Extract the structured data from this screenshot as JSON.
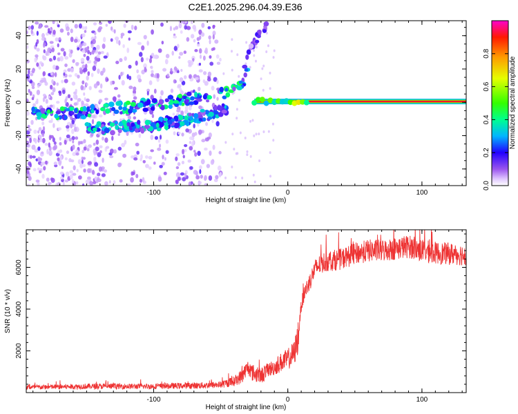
{
  "title": "C2E1.2025.296.04.39.E36",
  "chart_data": [
    {
      "type": "heatmap",
      "xlabel": "Height of straight line (km)",
      "ylabel": "Frequency (Hz)",
      "xlim": [
        -195,
        133
      ],
      "ylim": [
        -50,
        49
      ],
      "x_ticks": [
        -100,
        0,
        100
      ],
      "y_ticks": [
        -40,
        -20,
        0,
        20,
        40
      ],
      "colorbar": {
        "label": "Normalized spectral amplitude",
        "range": [
          0,
          1
        ],
        "ticks": [
          0.0,
          0.2,
          0.4,
          0.6,
          0.8
        ]
      },
      "ridges": [
        {
          "name": "main-doppler-track",
          "x": [
            -190,
            -150,
            -120,
            -90,
            -60,
            -45,
            -38,
            -33,
            -30
          ],
          "y": [
            -7,
            -6,
            -3,
            0,
            4,
            6,
            8,
            13,
            20
          ],
          "amplitude": 0.35
        },
        {
          "name": "lower-track",
          "x": [
            -150,
            -125,
            -100,
            -75,
            -58,
            -45
          ],
          "y": [
            -16,
            -15,
            -14,
            -10,
            -7,
            -3
          ],
          "amplitude": 0.3
        },
        {
          "name": "upper-branch",
          "x": [
            -33,
            -25,
            -15
          ],
          "y": [
            22,
            35,
            48
          ],
          "amplitude": 0.15
        },
        {
          "name": "carrier-line",
          "x": [
            -25,
            133
          ],
          "y": [
            0.5,
            0
          ],
          "amplitude": 0.95
        }
      ]
    },
    {
      "type": "line",
      "xlabel": "Height of straight line (km)",
      "ylabel": "SNR (10 * v/v)",
      "xlim": [
        -195,
        133
      ],
      "ylim": [
        0,
        7800
      ],
      "x_ticks": [
        -100,
        0,
        100
      ],
      "y_ticks": [
        2000,
        4000,
        6000
      ],
      "series": [
        {
          "name": "SNR",
          "color": "#ee3333",
          "x": [
            -195,
            -150,
            -100,
            -60,
            -50,
            -40,
            -35,
            -30,
            -25,
            -20,
            -15,
            -10,
            -5,
            0,
            5,
            8,
            10,
            13,
            17,
            20,
            25,
            30,
            40,
            50,
            60,
            70,
            80,
            90,
            100,
            110,
            120,
            133
          ],
          "y": [
            250,
            300,
            300,
            350,
            380,
            550,
            750,
            1200,
            900,
            800,
            1100,
            1200,
            1450,
            1600,
            1900,
            2800,
            4200,
            4900,
            5400,
            5900,
            6200,
            6300,
            6400,
            6650,
            6800,
            6800,
            6900,
            7000,
            6800,
            6700,
            6650,
            6600
          ]
        }
      ]
    }
  ]
}
